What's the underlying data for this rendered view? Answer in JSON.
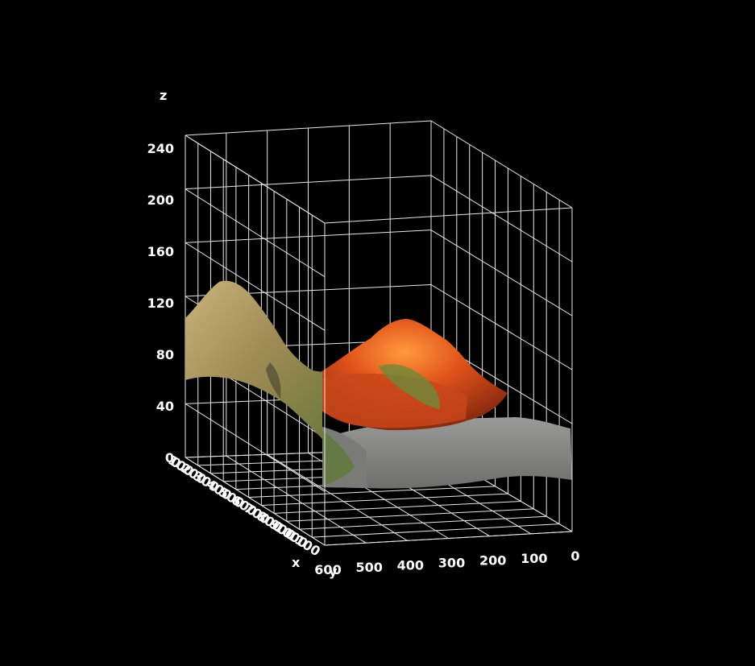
{
  "chart_data": {
    "type": "surface",
    "title": "",
    "xlabel": "x",
    "ylabel": "y",
    "zlabel": "z",
    "xlim": [
      0,
      1100
    ],
    "ylim": [
      0,
      600
    ],
    "zlim": [
      0,
      250
    ],
    "grid": true,
    "x_ticks": [
      "0",
      "100",
      "200",
      "300",
      "400",
      "500",
      "600",
      "700",
      "800",
      "900",
      "1000",
      "1100"
    ],
    "y_ticks": [
      "600",
      "500",
      "400",
      "300",
      "200",
      "100",
      "0"
    ],
    "z_ticks": [
      "0",
      "40",
      "80",
      "120",
      "160",
      "200",
      "240"
    ],
    "surface_texture": "terrain photo (grass, orange foliage, grey ground)",
    "colors": {
      "background": "#000000",
      "grid": "#e8e8e8",
      "text": "#ffffff",
      "grass": "#a89a5e",
      "foliage": "#d8501c",
      "ground": "#8a8a88"
    }
  }
}
